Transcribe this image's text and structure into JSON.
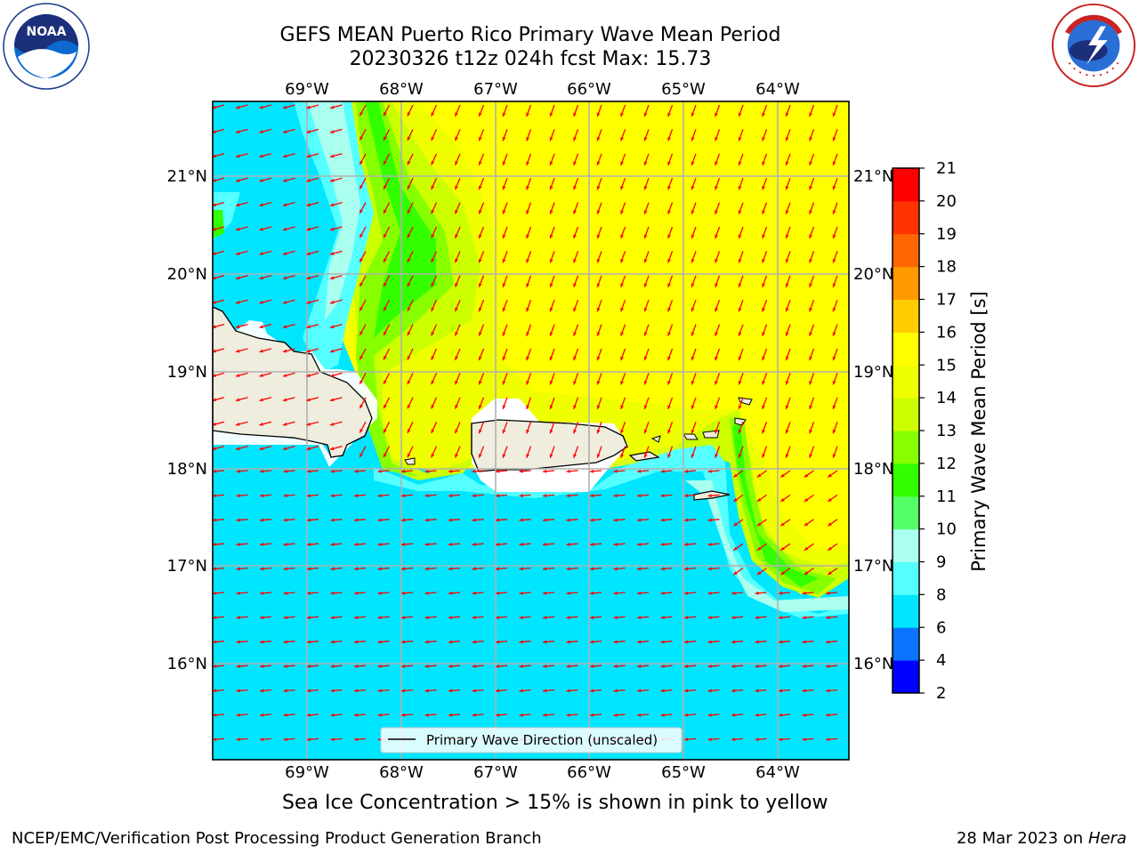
{
  "header": {
    "title_line1": "GEFS MEAN Puerto Rico Primary Wave Mean Period",
    "title_line2": "20230326 t12z 024h fcst   Max: 15.73"
  },
  "logos": {
    "left_icon": "noaa-logo",
    "left_text": "NOAA",
    "left_ring_text": "NATIONAL OCEANIC AND ATMOSPHERIC ADMINISTRATION · U.S. DEPARTMENT OF COMMERCE",
    "right_icon": "nws-logo",
    "right_ring_text": "NATIONAL WEATHER SERVICE"
  },
  "map": {
    "lon_labels": [
      "69°W",
      "68°W",
      "67°W",
      "66°W",
      "65°W",
      "64°W"
    ],
    "lat_labels": [
      "21°N",
      "20°N",
      "19°N",
      "18°N",
      "17°N",
      "16°N"
    ],
    "legend_label": "Primary Wave Direction (unscaled)",
    "arrow_color": "#ff0000",
    "land_color": "#eeedde"
  },
  "colorbar": {
    "title": "Primary Wave Mean Period [s]",
    "ticks": [
      "2",
      "4",
      "6",
      "8",
      "9",
      "10",
      "11",
      "12",
      "13",
      "14",
      "15",
      "16",
      "17",
      "18",
      "19",
      "20",
      "21"
    ],
    "colors": [
      "#0000ff",
      "#0a73ff",
      "#00e6ff",
      "#55ffff",
      "#aaffee",
      "#55ff66",
      "#33ff00",
      "#88ff00",
      "#ccff00",
      "#eeff00",
      "#ffff00",
      "#ffcc00",
      "#ff9900",
      "#ff6600",
      "#ff3300",
      "#ff0000"
    ]
  },
  "subtitle": "Sea Ice Concentration > 15% is shown in pink to yellow",
  "footer": {
    "left": "NCEP/EMC/Verification Post Processing Product Generation Branch",
    "date": "28 Mar 2023 on",
    "host": "Hera"
  }
}
